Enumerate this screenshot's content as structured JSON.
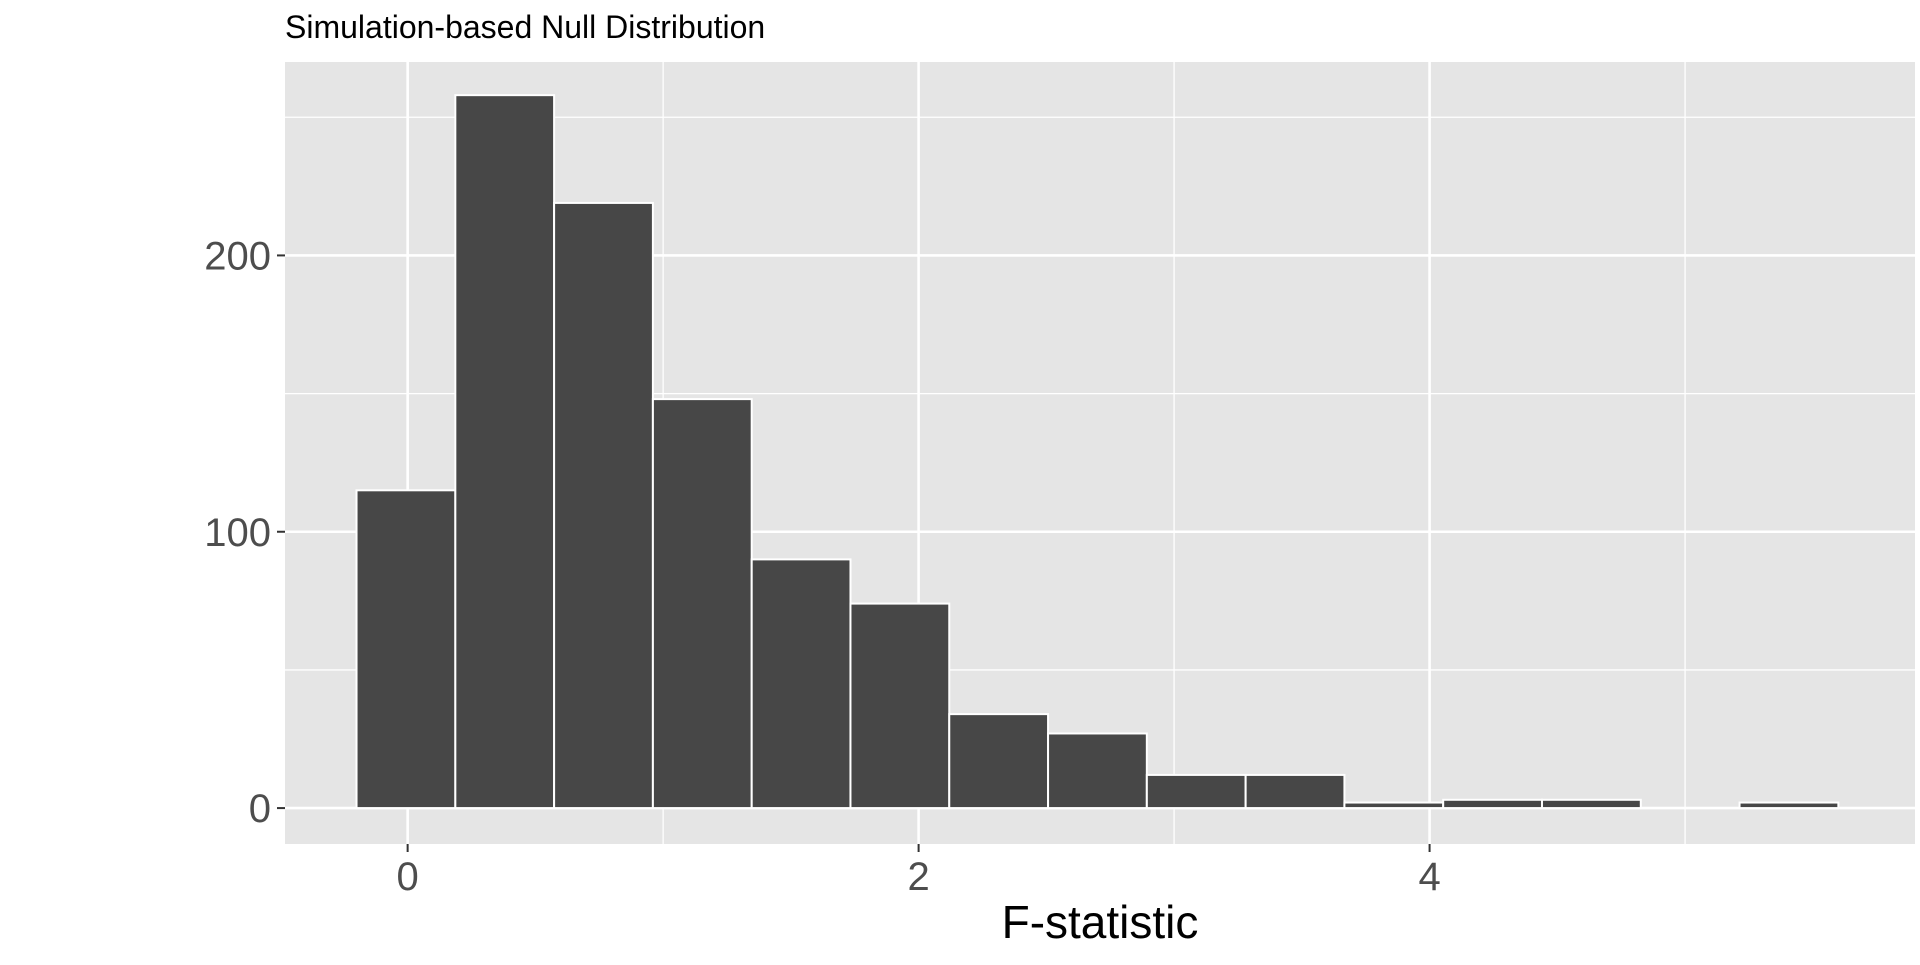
{
  "chart_data": {
    "type": "bar",
    "title": "Simulation-based Null Distribution",
    "xlabel": "F-statistic",
    "ylabel": "",
    "bins": [
      {
        "x0": -0.2,
        "x1": 0.1867,
        "count": 115
      },
      {
        "x0": 0.1867,
        "x1": 0.5733,
        "count": 258
      },
      {
        "x0": 0.5733,
        "x1": 0.96,
        "count": 219
      },
      {
        "x0": 0.96,
        "x1": 1.3467,
        "count": 148
      },
      {
        "x0": 1.3467,
        "x1": 1.7333,
        "count": 90
      },
      {
        "x0": 1.7333,
        "x1": 2.12,
        "count": 74
      },
      {
        "x0": 2.12,
        "x1": 2.5067,
        "count": 34
      },
      {
        "x0": 2.5067,
        "x1": 2.8933,
        "count": 27
      },
      {
        "x0": 2.8933,
        "x1": 3.28,
        "count": 12
      },
      {
        "x0": 3.28,
        "x1": 3.6667,
        "count": 12
      },
      {
        "x0": 3.6667,
        "x1": 4.0533,
        "count": 2
      },
      {
        "x0": 4.0533,
        "x1": 4.44,
        "count": 3
      },
      {
        "x0": 4.44,
        "x1": 4.8267,
        "count": 3
      },
      {
        "x0": 4.8267,
        "x1": 5.2133,
        "count": 0
      },
      {
        "x0": 5.2133,
        "x1": 5.6,
        "count": 2
      }
    ],
    "xlim": [
      -0.48,
      5.9
    ],
    "ylim": [
      -13,
      270
    ],
    "x_ticks": [
      0,
      2,
      4
    ],
    "x_tick_labels": [
      "0",
      "2",
      "4"
    ],
    "x_minor_ticks": [
      1,
      3,
      5
    ],
    "y_ticks": [
      0,
      100,
      200
    ],
    "y_tick_labels": [
      "0",
      "100",
      "200"
    ],
    "y_minor_ticks": [
      50,
      150,
      250
    ],
    "grid": true,
    "colors": {
      "panel": "#e5e5e5",
      "grid": "#ffffff",
      "bar_fill": "#474747",
      "bar_stroke": "#ffffff",
      "tick_text": "#4d4d4d",
      "title_text": "#000000"
    }
  }
}
